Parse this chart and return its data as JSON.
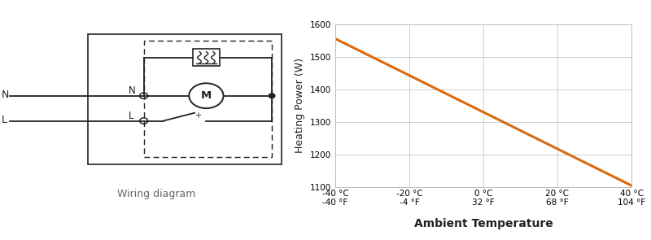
{
  "line_x": [
    -40,
    40
  ],
  "line_y": [
    1555,
    1105
  ],
  "ylim": [
    1100,
    1600
  ],
  "xlim": [
    -40,
    40
  ],
  "yticks": [
    1100,
    1200,
    1300,
    1400,
    1500,
    1600
  ],
  "xticks": [
    -40,
    -20,
    0,
    20,
    40
  ],
  "xlabel_celsius": [
    "-40 °C",
    "-20 °C",
    "0 °C",
    "20 °C",
    "40 °C"
  ],
  "xlabel_fahrenheit": [
    "-40 °F",
    "-4 °F",
    "32 °F",
    "68 °F",
    "104 °F"
  ],
  "ylabel": "Heating Power (W)",
  "xlabel": "Ambient Temperature",
  "line_color": "#D96A10",
  "grid_color": "#BBBBBB",
  "background_color": "#FFFFFF",
  "wiring_label": "Wiring diagram",
  "fig_width": 8.0,
  "fig_height": 2.95,
  "dark": "#222222",
  "gray": "#666666"
}
